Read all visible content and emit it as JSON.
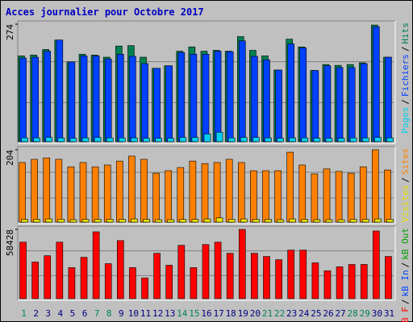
{
  "chart_data": {
    "type": "bar",
    "title": "Acces journalier pour Octobre 2017",
    "categories": [
      "1",
      "2",
      "3",
      "4",
      "5",
      "6",
      "7",
      "8",
      "9",
      "10",
      "11",
      "12",
      "13",
      "14",
      "15",
      "16",
      "17",
      "18",
      "19",
      "20",
      "21",
      "22",
      "23",
      "24",
      "25",
      "26",
      "27",
      "28",
      "29",
      "30",
      "31"
    ],
    "category_colors": [
      "#008060",
      "#000080",
      "#000080",
      "#000080",
      "#000080",
      "#000080",
      "#008060",
      "#008060",
      "#000080",
      "#000080",
      "#000080",
      "#000080",
      "#000080",
      "#008060",
      "#008060",
      "#000080",
      "#000080",
      "#000080",
      "#000080",
      "#000080",
      "#008060",
      "#008060",
      "#000080",
      "#000080",
      "#000080",
      "#000080",
      "#000080",
      "#008060",
      "#008060",
      "#000080",
      "#000080"
    ],
    "legend_separator": "/",
    "panels": [
      {
        "ylim": [
          0,
          274
        ],
        "yticks": [
          274
        ],
        "series": [
          {
            "name": "Hits",
            "color": "#008050",
            "values": [
              200,
              202,
              215,
              237,
              186,
              204,
              202,
              197,
              223,
              224,
              197,
              171,
              177,
              211,
              221,
              211,
              213,
              211,
              245,
              213,
              200,
              167,
              239,
              221,
              166,
              180,
              178,
              180,
              184,
              272,
              197
            ]
          },
          {
            "name": "Fichiers",
            "color": "#0040ff",
            "values": [
              195,
              197,
              211,
              237,
              186,
              200,
              200,
              193,
              204,
              199,
              182,
              171,
              177,
              208,
              204,
              204,
              211,
              210,
              235,
              199,
              191,
              167,
              228,
              219,
              166,
              177,
              173,
              173,
              182,
              268,
              197
            ]
          },
          {
            "name": "Pages",
            "color": "#00d0f0",
            "values": [
              9,
              9,
              10,
              9,
              8,
              9,
              10,
              9,
              9,
              9,
              8,
              8,
              8,
              10,
              10,
              18,
              22,
              9,
              10,
              10,
              9,
              8,
              9,
              9,
              8,
              8,
              8,
              9,
              9,
              10,
              9
            ]
          }
        ]
      },
      {
        "ylim": [
          0,
          204
        ],
        "yticks": [
          204
        ],
        "series": [
          {
            "name": "Sites",
            "color": "#ff8000",
            "values": [
              168,
              177,
              181,
              177,
              156,
              168,
              156,
              161,
              172,
              186,
              177,
              138,
              145,
              154,
              172,
              165,
              168,
              177,
              168,
              145,
              145,
              145,
              197,
              161,
              136,
              150,
              143,
              138,
              156,
              204,
              147
            ]
          },
          {
            "name": "Visites",
            "color": "#e8e000",
            "values": [
              8,
              8,
              9,
              8,
              7,
              8,
              8,
              8,
              8,
              9,
              8,
              7,
              7,
              8,
              8,
              9,
              12,
              8,
              9,
              8,
              8,
              7,
              9,
              8,
              7,
              7,
              7,
              8,
              8,
              9,
              8
            ]
          }
        ]
      },
      {
        "ylim": [
          0,
          58428
        ],
        "yticks": [
          58428
        ],
        "series": [
          {
            "name": "kB Out",
            "color": "#00a000"
          },
          {
            "name": "kB In",
            "color": "#0040ff"
          },
          {
            "name": "kB F",
            "color": "#ff0000",
            "values": [
              47683,
              30893,
              36266,
              47683,
              26192,
              34923,
              56413,
              29550,
              49026,
              26192,
              17461,
              38280,
              28207,
              44996,
              26192,
              45668,
              47683,
              38280,
              58428,
              38280,
              35594,
              32908,
              40966,
              40966,
              30221,
              23505,
              26863,
              28878,
              28878,
              57085,
              35594
            ]
          }
        ]
      }
    ]
  }
}
